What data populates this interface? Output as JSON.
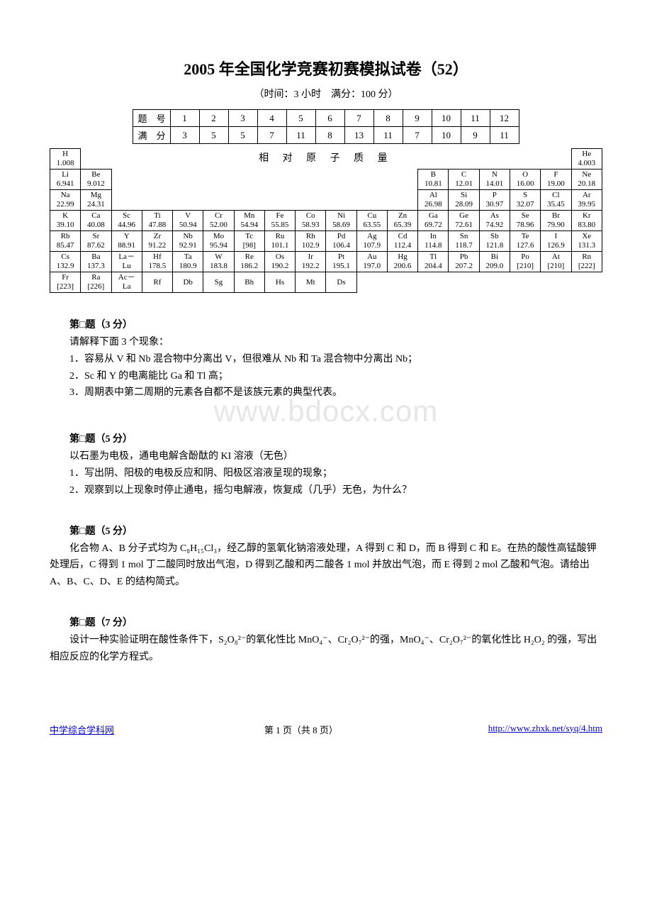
{
  "title": "2005 年全国化学竞赛初赛模拟试卷（52）",
  "subtitle": "（时间：3 小时　满分：100 分）",
  "score_table": {
    "row1_label": "题　号",
    "row2_label": "满　分",
    "cols": [
      "1",
      "2",
      "3",
      "4",
      "5",
      "6",
      "7",
      "8",
      "9",
      "10",
      "11",
      "12"
    ],
    "scores": [
      "3",
      "5",
      "5",
      "7",
      "11",
      "8",
      "13",
      "11",
      "7",
      "10",
      "9",
      "11"
    ]
  },
  "periodic_caption": "相 对 原 子 质 量",
  "periodic": {
    "r1": {
      "H": "H\n1.008",
      "He": "He\n4.003"
    },
    "r2": {
      "Li": "Li\n6.941",
      "Be": "Be\n9.012",
      "B": "B\n10.81",
      "C": "C\n12.01",
      "N": "N\n14.01",
      "O": "O\n16.00",
      "F": "F\n19.00",
      "Ne": "Ne\n20.18"
    },
    "r3": {
      "Na": "Na\n22.99",
      "Mg": "Mg\n24.31",
      "Al": "Al\n26.98",
      "Si": "Si\n28.09",
      "P": "P\n30.97",
      "S": "S\n32.07",
      "Cl": "Cl\n35.45",
      "Ar": "Ar\n39.95"
    },
    "r4": {
      "K": "K\n39.10",
      "Ca": "Ca\n40.08",
      "Sc": "Sc\n44.96",
      "Ti": "Ti\n47.88",
      "V": "V\n50.94",
      "Cr": "Cr\n52.00",
      "Mn": "Mn\n54.94",
      "Fe": "Fe\n55.85",
      "Co": "Co\n58.93",
      "Ni": "Ni\n58.69",
      "Cu": "Cu\n63.55",
      "Zn": "Zn\n65.39",
      "Ga": "Ga\n69.72",
      "Ge": "Ge\n72.61",
      "As": "As\n74.92",
      "Se": "Se\n78.96",
      "Br": "Br\n79.90",
      "Kr": "Kr\n83.80"
    },
    "r5": {
      "Rb": "Rb\n85.47",
      "Sr": "Sr\n87.62",
      "Y": "Y\n88.91",
      "Zr": "Zr\n91.22",
      "Nb": "Nb\n92.91",
      "Mo": "Mo\n95.94",
      "Tc": "Tc\n[98]",
      "Ru": "Ru\n101.1",
      "Rh": "Rh\n102.9",
      "Pd": "Pd\n106.4",
      "Ag": "Ag\n107.9",
      "Cd": "Cd\n112.4",
      "In": "In\n114.8",
      "Sn": "Sn\n118.7",
      "Sb": "Sb\n121.8",
      "Te": "Te\n127.6",
      "I": "I\n126.9",
      "Xe": "Xe\n131.3"
    },
    "r6": {
      "Cs": "Cs\n132.9",
      "Ba": "Ba\n137.3",
      "La": "La－\nLu",
      "Hf": "Hf\n178.5",
      "Ta": "Ta\n180.9",
      "W": "W\n183.8",
      "Re": "Re\n186.2",
      "Os": "Os\n190.2",
      "Ir": "Ir\n192.2",
      "Pt": "Pt\n195.1",
      "Au": "Au\n197.0",
      "Hg": "Hg\n200.6",
      "Tl": "Tl\n204.4",
      "Pb": "Pb\n207.2",
      "Bi": "Bi\n209.0",
      "Po": "Po\n[210]",
      "At": "At\n[210]",
      "Rn": "Rn\n[222]"
    },
    "r7": {
      "Fr": "Fr\n[223]",
      "Ra": "Ra\n[226]",
      "Ac": "Ac－\nLa",
      "Rf": "Rf",
      "Db": "Db",
      "Sg": "Sg",
      "Bh": "Bh",
      "Hs": "Hs",
      "Mt": "Mt",
      "Ds": "Ds"
    }
  },
  "q1": {
    "header": "第□题（3 分）",
    "intro": "请解释下面 3 个现象：",
    "items": [
      "1．容易从 V 和 Nb 混合物中分离出 V，但很难从 Nb 和 Ta 混合物中分离出 Nb；",
      "2．Sc 和 Y 的电离能比 Ga 和 Tl 高；",
      "3．周期表中第二周期的元素各自都不是该族元素的典型代表。"
    ]
  },
  "watermark": "www.bdocx.com",
  "q2": {
    "header": "第□题（5 分）",
    "intro": "以石墨为电极，通电电解含酚酞的 KI 溶液（无色）",
    "items": [
      "1．写出阴、阳极的电极反应和阴、阳极区溶液呈现的现象；",
      "2．观察到以上现象时停止通电，摇匀电解液，恢复成（几乎）无色，为什么？"
    ]
  },
  "q3": {
    "header": "第□题（5 分）",
    "body": "化合物 A、B 分子式均为 C₈H₁₅Cl₃，经乙醇的氢氧化钠溶液处理，A 得到 C 和 D，而 B 得到 C 和 E。在热的酸性高锰酸钾处理后，C 得到 1 mol 丁二酸同时放出气泡，D 得到乙酸和丙二酸各 1 mol 并放出气泡，而 E 得到 2 mol 乙酸和气泡。请给出 A、B、C、D、E 的结构简式。"
  },
  "q4": {
    "header": "第□题（7 分）",
    "body": "设计一种实验证明在酸性条件下，S₂O₈²⁻的氧化性比 MnO₄⁻、Cr₂O₇²⁻的强，MnO₄⁻、Cr₂O₇²⁻的氧化性比 H₂O₂ 的强，写出相应反应的化学方程式。"
  },
  "footer": {
    "left_text": "中学综合学科网",
    "left_url": "#",
    "center": "第 1 页（共 8 页）",
    "right_text": "http://www.zhxk.net/syq/4.htm",
    "right_url": "#"
  }
}
